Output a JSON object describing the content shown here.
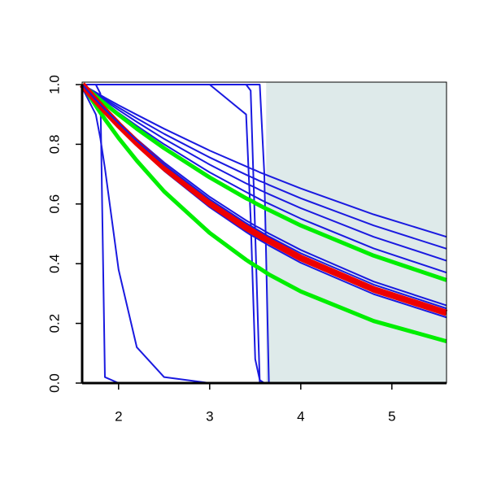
{
  "chart_data": {
    "type": "line",
    "x": [
      1.6,
      1.75,
      1.8,
      1.85,
      2.0,
      2.2,
      2.5,
      3.0,
      3.4,
      3.45,
      3.5,
      3.55,
      3.6,
      3.65,
      4.0,
      4.8,
      5.6
    ],
    "xlim": [
      1.6,
      5.6
    ],
    "ylim": [
      0,
      1
    ],
    "xticks": [
      2,
      3,
      4,
      5
    ],
    "yticks": [
      {
        "value": 0,
        "label": "0.0"
      },
      0.2,
      0.4,
      0.6,
      0.8,
      {
        "value": 1,
        "label": "1.0"
      }
    ],
    "shaded_region": {
      "xmin": 3.62,
      "xmax": 5.6,
      "color": "#deeaea"
    },
    "series": [
      {
        "color": "#1a1ae0",
        "values": [
          1,
          1,
          0.97,
          0.02,
          0,
          0,
          0,
          0,
          0,
          0,
          0,
          0,
          0,
          0,
          0,
          0,
          0
        ]
      },
      {
        "color": "#1a1ae0",
        "values": [
          0.99,
          0.9,
          0.82,
          0.72,
          0.38,
          0.12,
          0.02,
          0,
          0,
          0,
          0,
          0,
          0,
          0,
          0,
          0,
          0
        ]
      },
      {
        "color": "#1a1ae0",
        "values": [
          1,
          1,
          1,
          1,
          1,
          1,
          1,
          1,
          0.9,
          0.55,
          0.08,
          0.01,
          0,
          0,
          0,
          0,
          0
        ]
      },
      {
        "color": "#1a1ae0",
        "values": [
          1,
          1,
          1,
          1,
          1,
          1,
          1,
          1,
          1,
          0.98,
          0.5,
          0,
          0,
          0,
          0,
          0,
          0
        ]
      },
      {
        "color": "#1a1ae0",
        "values": [
          1,
          1,
          1,
          1,
          1,
          1,
          1,
          1,
          1,
          1,
          1,
          1,
          0.7,
          0,
          0,
          0,
          0
        ]
      },
      {
        "color": "#1a1ae0",
        "values": [
          1,
          0.974,
          0.965,
          0.956,
          0.931,
          0.899,
          0.852,
          0.779,
          0.726,
          0.719,
          0.713,
          0.706,
          0.7,
          0.694,
          0.652,
          0.565,
          0.49
        ]
      },
      {
        "color": "#1a1ae0",
        "values": [
          1,
          0.97,
          0.961,
          0.951,
          0.923,
          0.887,
          0.835,
          0.756,
          0.698,
          0.691,
          0.684,
          0.677,
          0.671,
          0.664,
          0.619,
          0.528,
          0.45
        ]
      },
      {
        "color": "#1a1ae0",
        "values": [
          1,
          0.967,
          0.956,
          0.946,
          0.915,
          0.875,
          0.818,
          0.732,
          0.669,
          0.662,
          0.655,
          0.647,
          0.64,
          0.633,
          0.586,
          0.49,
          0.41
        ]
      },
      {
        "color": "#1a1ae0",
        "values": [
          1,
          0.963,
          0.951,
          0.94,
          0.905,
          0.862,
          0.8,
          0.706,
          0.64,
          0.632,
          0.624,
          0.616,
          0.608,
          0.601,
          0.551,
          0.451,
          0.37
        ]
      },
      {
        "color": "#1a1ae0",
        "values": [
          1,
          0.951,
          0.935,
          0.919,
          0.874,
          0.817,
          0.739,
          0.624,
          0.545,
          0.536,
          0.527,
          0.519,
          0.51,
          0.501,
          0.446,
          0.34,
          0.26
        ]
      },
      {
        "color": "#1a1ae0",
        "values": [
          1,
          0.945,
          0.927,
          0.91,
          0.86,
          0.797,
          0.711,
          0.589,
          0.506,
          0.496,
          0.488,
          0.479,
          0.47,
          0.461,
          0.403,
          0.298,
          0.22
        ]
      },
      {
        "color": "#00ee00",
        "values": [
          1,
          0.961,
          0.948,
          0.936,
          0.899,
          0.852,
          0.787,
          0.689,
          0.619,
          0.612,
          0.603,
          0.595,
          0.587,
          0.58,
          0.528,
          0.427,
          0.345
        ]
      },
      {
        "color": "#00ee00",
        "values": [
          1,
          0.929,
          0.906,
          0.884,
          0.821,
          0.745,
          0.642,
          0.503,
          0.413,
          0.403,
          0.393,
          0.384,
          0.374,
          0.364,
          0.307,
          0.208,
          0.14
        ]
      },
      {
        "color": "#ee0000",
        "values": [
          1,
          0.947,
          0.93,
          0.913,
          0.865,
          0.805,
          0.722,
          0.603,
          0.521,
          0.512,
          0.503,
          0.494,
          0.485,
          0.477,
          0.419,
          0.314,
          0.235
        ]
      },
      {
        "color": "#1a1ae0",
        "values": [
          1,
          0.949,
          0.933,
          0.917,
          0.871,
          0.812,
          0.732,
          0.616,
          0.536,
          0.527,
          0.518,
          0.509,
          0.5,
          0.491,
          0.435,
          0.33,
          0.25
        ]
      }
    ]
  }
}
